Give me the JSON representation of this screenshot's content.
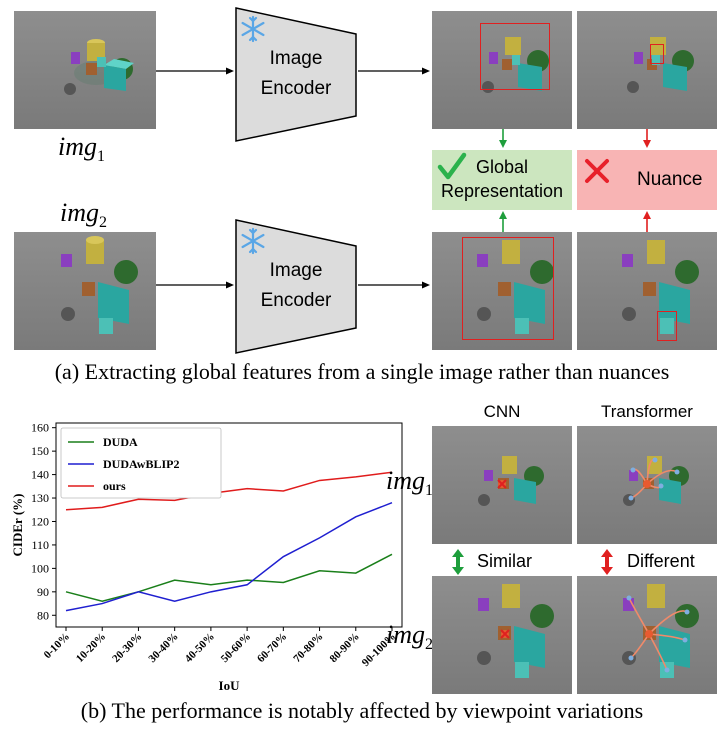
{
  "part_a": {
    "img1_label": "img",
    "img1_sub": "1",
    "img2_label": "img",
    "img2_sub": "2",
    "encoder_label_line1": "Image",
    "encoder_label_line2": "Encoder",
    "global_box_line1": "Global",
    "global_box_line2": "Representation",
    "nuance_box": "Nuance",
    "caption": "(a) Extracting global features from a single image rather than nuances",
    "colors": {
      "green_box": "#cce6bf",
      "red_box": "#f8b4b4",
      "check": "#2bb24c",
      "cross": "#e8202a",
      "bbox": "#e02020",
      "arrow_green": "#1e9e3c",
      "arrow_red": "#e02020"
    },
    "icons": [
      "snowflake-icon",
      "check-icon",
      "cross-icon"
    ]
  },
  "part_b": {
    "cnn_header": "CNN",
    "transformer_header": "Transformer",
    "img1_label": "img",
    "img1_sub": "1",
    "img2_label": "img",
    "img2_sub": "2",
    "similar_label": "Similar",
    "different_label": "Different",
    "caption": "(b) The performance is notably affected by viewpoint variations"
  },
  "chart_data": {
    "type": "line",
    "xlabel": "IoU",
    "ylabel": "CIDEr (%)",
    "ylim": [
      75,
      162
    ],
    "yticks": [
      80,
      90,
      100,
      110,
      120,
      130,
      140,
      150,
      160
    ],
    "categories": [
      "0-10%",
      "10-20%",
      "20-30%",
      "30-40%",
      "40-50%",
      "50-60%",
      "60-70%",
      "70-80%",
      "80-90%",
      "90-100%"
    ],
    "legend_position": "top-left",
    "grid": false,
    "series": [
      {
        "name": "DUDA",
        "color": "#1a7f1a",
        "values": [
          90,
          86,
          90,
          95,
          93,
          95,
          94,
          99,
          98,
          106
        ]
      },
      {
        "name": "DUDAwBLIP2",
        "color": "#1f1fd0",
        "values": [
          82,
          85,
          90,
          86,
          90,
          93,
          105,
          113,
          122,
          128
        ]
      },
      {
        "name": "ours",
        "color": "#e01c1c",
        "values": [
          125,
          126,
          129.5,
          129,
          132,
          134,
          133,
          137.5,
          139,
          141
        ]
      }
    ]
  }
}
